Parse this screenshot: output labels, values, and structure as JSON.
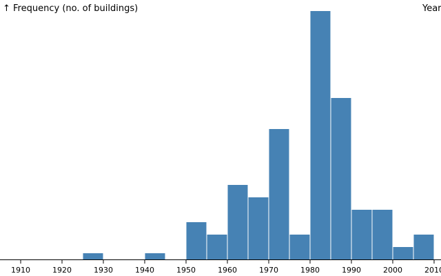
{
  "chart_data": {
    "type": "histogram",
    "y_label": "↑ Frequency (no. of buildings)",
    "x_label": "Year",
    "bins": [
      1925,
      1930,
      1935,
      1940,
      1945,
      1950,
      1955,
      1960,
      1965,
      1970,
      1975,
      1980,
      1985,
      1990,
      1995,
      2000,
      2005,
      2010
    ],
    "values": [
      1,
      0,
      0,
      1,
      0,
      6,
      4,
      12,
      10,
      21,
      4,
      40,
      26,
      8,
      8,
      2,
      4
    ],
    "color": "#4682b4",
    "xlim": [
      1905,
      2011.67
    ],
    "xticks": [
      1910,
      1920,
      1930,
      1940,
      1950,
      1960,
      1970,
      1980,
      1990,
      2000,
      2010
    ],
    "ylim": [
      0,
      40
    ]
  }
}
